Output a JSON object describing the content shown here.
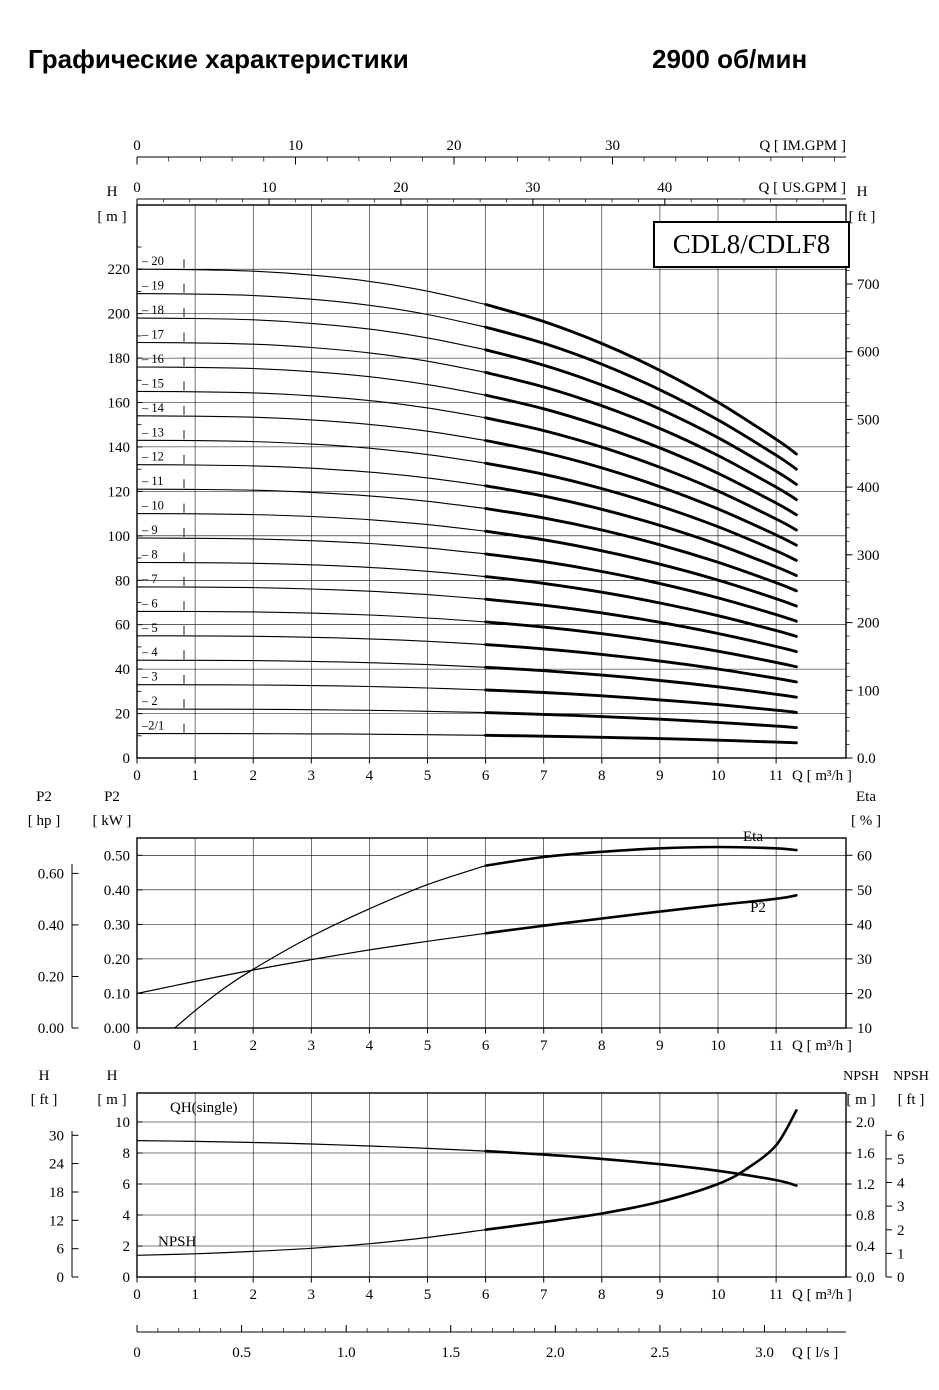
{
  "header": {
    "title": "Графические характеристики",
    "rpm_label": "2900 об/мин"
  },
  "model_label": "CDL8/CDLF8",
  "chart_data": [
    {
      "id": "qh_multistage",
      "type": "line",
      "title": "CDL8/CDLF8",
      "x_axis": {
        "label": "Q [ m³/h ]",
        "tick_values": [
          0,
          1,
          2,
          3,
          4,
          5,
          6,
          7,
          8,
          9,
          10,
          11
        ],
        "max_q": 12.2
      },
      "im_axis": {
        "label": "Q [ IM.GPM ]",
        "major_ticks": [
          0,
          10,
          20,
          30
        ],
        "minor_step": 2,
        "gpm_per_m3h": 3.666
      },
      "us_axis": {
        "label": "Q [ US.GPM ]",
        "major_ticks": [
          0,
          10,
          20,
          30,
          40
        ],
        "minor_step": 2,
        "gpm_per_m3h": 4.403
      },
      "h_m_axis": {
        "name": "H",
        "unit": "[ m ]",
        "major_ticks": [
          0,
          20,
          40,
          60,
          80,
          100,
          120,
          140,
          160,
          180,
          200,
          220
        ],
        "minor_step": 10,
        "max": 248
      },
      "h_ft_axis": {
        "name": "H",
        "unit": "[ ft ]",
        "tick_labels": [
          "0.0",
          "100",
          "200",
          "300",
          "400",
          "500",
          "600",
          "700"
        ],
        "tick_values": [
          0,
          100,
          200,
          300,
          400,
          500,
          600,
          700
        ],
        "minor_step": 20,
        "m_per_ft": 0.3048
      },
      "curve_shape": {
        "q": [
          0,
          1,
          2,
          3,
          4,
          5,
          6,
          7,
          8,
          9,
          10,
          11,
          11.35
        ],
        "rel_h": [
          1.0,
          0.999,
          0.996,
          0.988,
          0.975,
          0.955,
          0.928,
          0.893,
          0.848,
          0.793,
          0.728,
          0.652,
          0.622
        ]
      },
      "bold_from_q": 6,
      "stages": [
        {
          "label": "– 20",
          "shutoff_m": 220
        },
        {
          "label": "– 19",
          "shutoff_m": 209
        },
        {
          "label": "– 18",
          "shutoff_m": 198
        },
        {
          "label": "– 17",
          "shutoff_m": 187
        },
        {
          "label": "– 16",
          "shutoff_m": 176
        },
        {
          "label": "– 15",
          "shutoff_m": 165
        },
        {
          "label": "– 14",
          "shutoff_m": 154
        },
        {
          "label": "– 13",
          "shutoff_m": 143
        },
        {
          "label": "– 12",
          "shutoff_m": 132
        },
        {
          "label": "– 11",
          "shutoff_m": 121
        },
        {
          "label": "– 10",
          "shutoff_m": 110
        },
        {
          "label": "– 9",
          "shutoff_m": 99
        },
        {
          "label": "– 8",
          "shutoff_m": 88
        },
        {
          "label": "– 7",
          "shutoff_m": 77
        },
        {
          "label": "– 6",
          "shutoff_m": 66
        },
        {
          "label": "– 5",
          "shutoff_m": 55
        },
        {
          "label": "– 4",
          "shutoff_m": 44
        },
        {
          "label": "– 3",
          "shutoff_m": 33
        },
        {
          "label": "– 2",
          "shutoff_m": 22
        },
        {
          "label": "–2/1",
          "shutoff_m": 11
        }
      ]
    },
    {
      "id": "power_efficiency",
      "type": "line",
      "x_axis": {
        "label": "Q [ m³/h ]",
        "tick_values": [
          0,
          1,
          2,
          3,
          4,
          5,
          6,
          7,
          8,
          9,
          10,
          11
        ]
      },
      "p2_hp_axis": {
        "name": "P2",
        "unit": "[ hp ]",
        "tick_labels": [
          "0.00",
          "0.20",
          "0.40",
          "0.60"
        ],
        "tick_values": [
          0,
          0.2,
          0.4,
          0.6
        ],
        "kw_per_hp": 0.7457
      },
      "p2_kw_axis": {
        "name": "P2",
        "unit": "[ kW ]",
        "tick_labels": [
          "0.00",
          "0.10",
          "0.20",
          "0.30",
          "0.40",
          "0.50"
        ],
        "tick_values": [
          0,
          0.1,
          0.2,
          0.3,
          0.4,
          0.5
        ],
        "max": 0.55
      },
      "eta_axis": {
        "name": "Eta",
        "unit": "[ % ]",
        "tick_values": [
          10,
          20,
          30,
          40,
          50,
          60
        ],
        "min": 10,
        "pct_per_kw": 100
      },
      "series": [
        {
          "name": "P2",
          "q": [
            0,
            1,
            2,
            3,
            4,
            5,
            6,
            7,
            8,
            9,
            10,
            11,
            11.35
          ],
          "kw": [
            0.1,
            0.135,
            0.168,
            0.198,
            0.226,
            0.251,
            0.274,
            0.296,
            0.317,
            0.337,
            0.356,
            0.374,
            0.384
          ],
          "bold_from_q": 6
        },
        {
          "name": "Eta",
          "q": [
            0.65,
            1,
            1.5,
            2,
            3,
            4,
            5,
            6,
            7,
            8,
            9,
            10,
            11,
            11.35
          ],
          "eta_pct": [
            10,
            15,
            21.5,
            27,
            36.5,
            44.5,
            51.5,
            57,
            59.5,
            61,
            62,
            62.4,
            62,
            61.5
          ],
          "bold_from_q": 6
        }
      ]
    },
    {
      "id": "single_stage_and_npsh",
      "type": "line",
      "x_axis": {
        "label": "Q [ m³/h ]",
        "tick_values": [
          0,
          1,
          2,
          3,
          4,
          5,
          6,
          7,
          8,
          9,
          10,
          11
        ]
      },
      "h_ft_axis": {
        "name": "H",
        "unit": "[ ft ]",
        "tick_values": [
          0,
          6,
          12,
          18,
          24,
          30
        ],
        "m_per_ft": 0.3048
      },
      "h_m_axis": {
        "name": "H",
        "unit": "[ m ]",
        "tick_values": [
          0,
          2,
          4,
          6,
          8,
          10
        ],
        "max": 11.9
      },
      "npsh_m_axis": {
        "name": "NPSH",
        "unit": "[ m ]",
        "tick_labels": [
          "0.0",
          "0.4",
          "0.8",
          "1.2",
          "1.6",
          "2.0"
        ],
        "tick_values": [
          0,
          0.4,
          0.8,
          1.2,
          1.6,
          2.0
        ],
        "h_m_per_npsh_m": 5
      },
      "npsh_ft_axis": {
        "name": "NPSH",
        "unit": "[ ft ]",
        "tick_values": [
          0,
          1,
          2,
          3,
          4,
          5,
          6
        ],
        "m_per_ft": 0.3048
      },
      "ls_axis": {
        "label": "Q [ l/s ]",
        "tick_labels": [
          "0",
          "0.5",
          "1.0",
          "1.5",
          "2.0",
          "2.5",
          "3.0"
        ],
        "tick_values": [
          0,
          0.5,
          1.0,
          1.5,
          2.0,
          2.5,
          3.0
        ],
        "minor_step": 0.1,
        "m3h_per_ls": 3.6
      },
      "series": [
        {
          "name": "QH(single)",
          "q": [
            0,
            1,
            2,
            3,
            4,
            5,
            6,
            7,
            8,
            9,
            10,
            11,
            11.35
          ],
          "h_m": [
            8.8,
            8.75,
            8.68,
            8.58,
            8.45,
            8.3,
            8.12,
            7.9,
            7.62,
            7.28,
            6.85,
            6.25,
            5.9
          ],
          "bold_from_q": 6
        },
        {
          "name": "NPSH",
          "q": [
            0,
            1,
            2,
            3,
            4,
            5,
            6,
            7,
            8,
            9,
            10,
            10.5,
            11,
            11.35
          ],
          "npsh_m": [
            0.28,
            0.3,
            0.33,
            0.37,
            0.43,
            0.51,
            0.61,
            0.71,
            0.82,
            0.97,
            1.2,
            1.4,
            1.7,
            2.15
          ],
          "bold_from_q": 6
        }
      ]
    }
  ]
}
